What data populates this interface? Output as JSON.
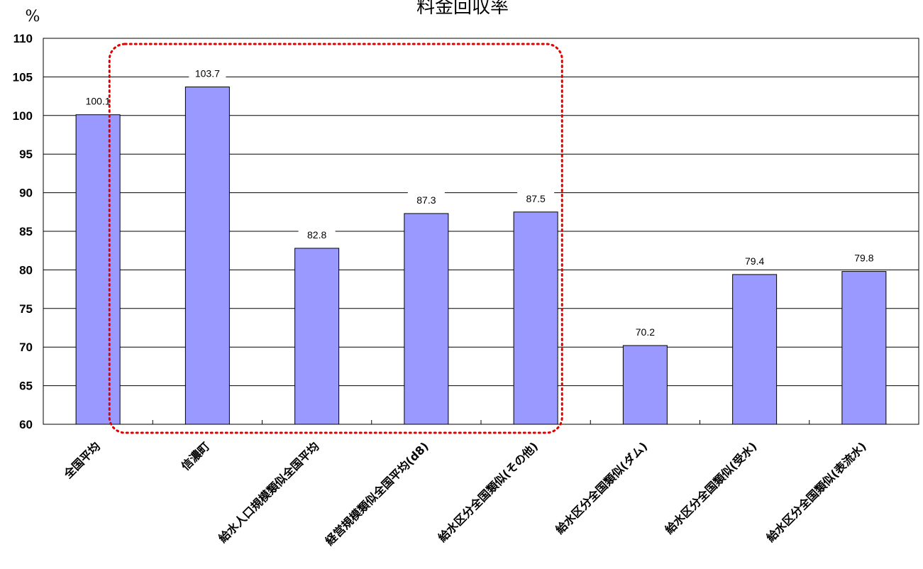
{
  "chart_data": {
    "type": "bar",
    "title": "料金回収率",
    "ylabel": "%",
    "xlabel": "",
    "ylim": [
      60,
      110
    ],
    "yticks": [
      60,
      65,
      70,
      75,
      80,
      85,
      90,
      95,
      100,
      105,
      110
    ],
    "grid": true,
    "categories": [
      "全国平均",
      "信濃町",
      "給水人口規模類似全国平均",
      "経営規模類似全国平均(d8)",
      "給水区分全国類似(その他)",
      "給水区分全国類似(ダム)",
      "給水区分全国類似(受水)",
      "給水区分全国類似(表流水)"
    ],
    "values": [
      100.1,
      103.7,
      82.8,
      87.3,
      87.5,
      70.2,
      79.4,
      79.8
    ],
    "highlight_box": {
      "categories": [
        1,
        4
      ],
      "style": "red dotted rounded rectangle"
    },
    "colors": {
      "bar_fill": "#9999ff",
      "bar_stroke": "#000000",
      "grid": "#000000",
      "highlight": "#e00000"
    }
  }
}
